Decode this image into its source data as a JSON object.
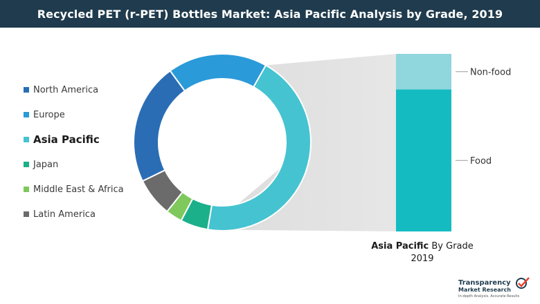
{
  "title": "Recycled PET (r-PET) Bottles Market: Asia Pacific Analysis by Grade, 2019",
  "colors": {
    "title_bg": "#1f3b4d",
    "connector": "#dcdcdc"
  },
  "chart_data": [
    {
      "type": "donut",
      "series": [
        {
          "label": "North America",
          "value": 22,
          "color": "#2a6db5"
        },
        {
          "label": "Europe",
          "value": 18,
          "color": "#2a9ad9"
        },
        {
          "label": "Asia Pacific",
          "value": 44,
          "color": "#45c3d0",
          "highlight": true
        },
        {
          "label": "Japan",
          "value": 5,
          "color": "#1bb08a"
        },
        {
          "label": "Middle East & Africa",
          "value": 3,
          "color": "#7ec85c"
        },
        {
          "label": "Latin America",
          "value": 7,
          "color": "#6b6b6b"
        }
      ]
    },
    {
      "type": "stacked-bar",
      "categories": [
        "Asia Pacific By Grade 2019"
      ],
      "series": [
        {
          "name": "Food",
          "values": [
            80
          ],
          "color": "#14bcc2"
        },
        {
          "name": "Non-food",
          "values": [
            20
          ],
          "color": "#8fd6dd"
        }
      ]
    }
  ],
  "bar_caption": {
    "bold": "Asia Pacific",
    "rest": " By Grade",
    "line2": "2019"
  },
  "logo": {
    "line1": "Transparency",
    "line2": "Market Research",
    "tagline": "In-depth Analysis. Accurate Results"
  }
}
